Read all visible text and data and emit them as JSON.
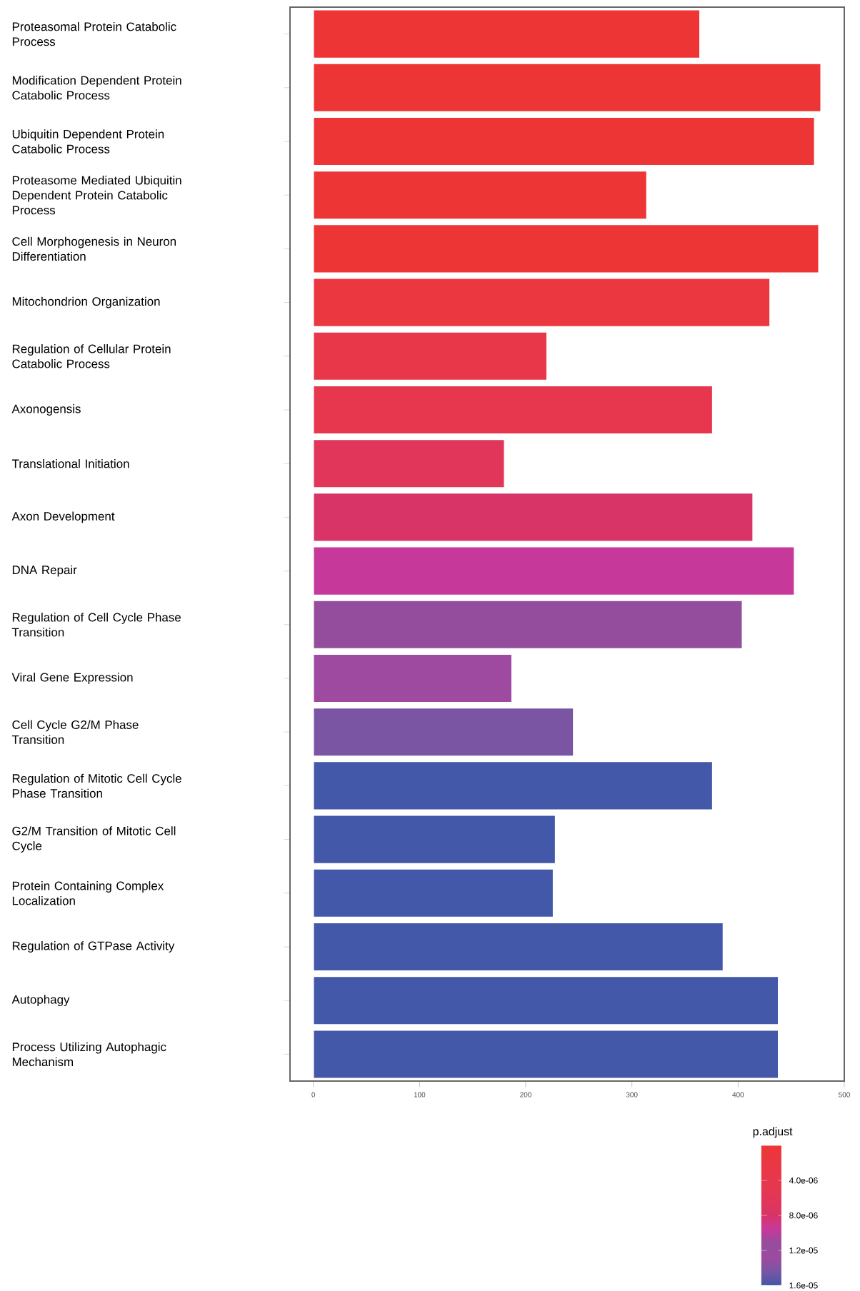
{
  "chart_data": {
    "type": "bar",
    "orientation": "horizontal",
    "categories": [
      "Proteasomal Protein Catabolic Process",
      "Modification Dependent Protein Catabolic Process",
      "Ubiquitin Dependent Protein Catabolic Process",
      "Proteasome Mediated Ubiquitin Dependent Protein Catabolic Process",
      "Cell Morphogenesis in Neuron Differentiation",
      "Mitochondrion Organization",
      "Regulation of Cellular Protein Catabolic Process",
      "Axonogensis",
      "Translational Initiation",
      "Axon Development",
      "DNA Repair",
      "Regulation of Cell Cycle Phase Transition",
      "Viral Gene Expression",
      "Cell Cycle G2/M Phase Transition",
      "Regulation of Mitotic Cell Cycle Phase Transition",
      "G2/M Transition of Mitotic Cell Cycle",
      "Protein Containing Complex Localization",
      "Regulation of GTPase Activity",
      "Autophagy",
      "Process Utilizing Autophagic Mechanism"
    ],
    "values": [
      364,
      478,
      472,
      314,
      476,
      430,
      220,
      376,
      180,
      414,
      453,
      404,
      187,
      245,
      376,
      228,
      226,
      386,
      438,
      438
    ],
    "colors": [
      "#ee3535",
      "#ee3535",
      "#ee3535",
      "#ee3535",
      "#ee3535",
      "#ea3740",
      "#e9374a",
      "#e6374f",
      "#e1365a",
      "#d83468",
      "#c6399b",
      "#944d9d",
      "#9d4aa0",
      "#7a55a4",
      "#4358a8",
      "#4358a8",
      "#4358a8",
      "#4358a8",
      "#4358a8",
      "#4358a8"
    ],
    "xlim": [
      -22,
      500
    ],
    "xticks": [
      0,
      100,
      200,
      300,
      400,
      500
    ],
    "clabel": "p.adjust",
    "clim": [
      0,
      1.6e-05
    ],
    "cticks": [
      {
        "value": 4e-06,
        "label": "4.0e-06"
      },
      {
        "value": 8e-06,
        "label": "8.0e-06"
      },
      {
        "value": 1.2e-05,
        "label": "1.2e-05"
      },
      {
        "value": 1.6e-05,
        "label": "1.6e-05"
      }
    ],
    "grid": false
  }
}
